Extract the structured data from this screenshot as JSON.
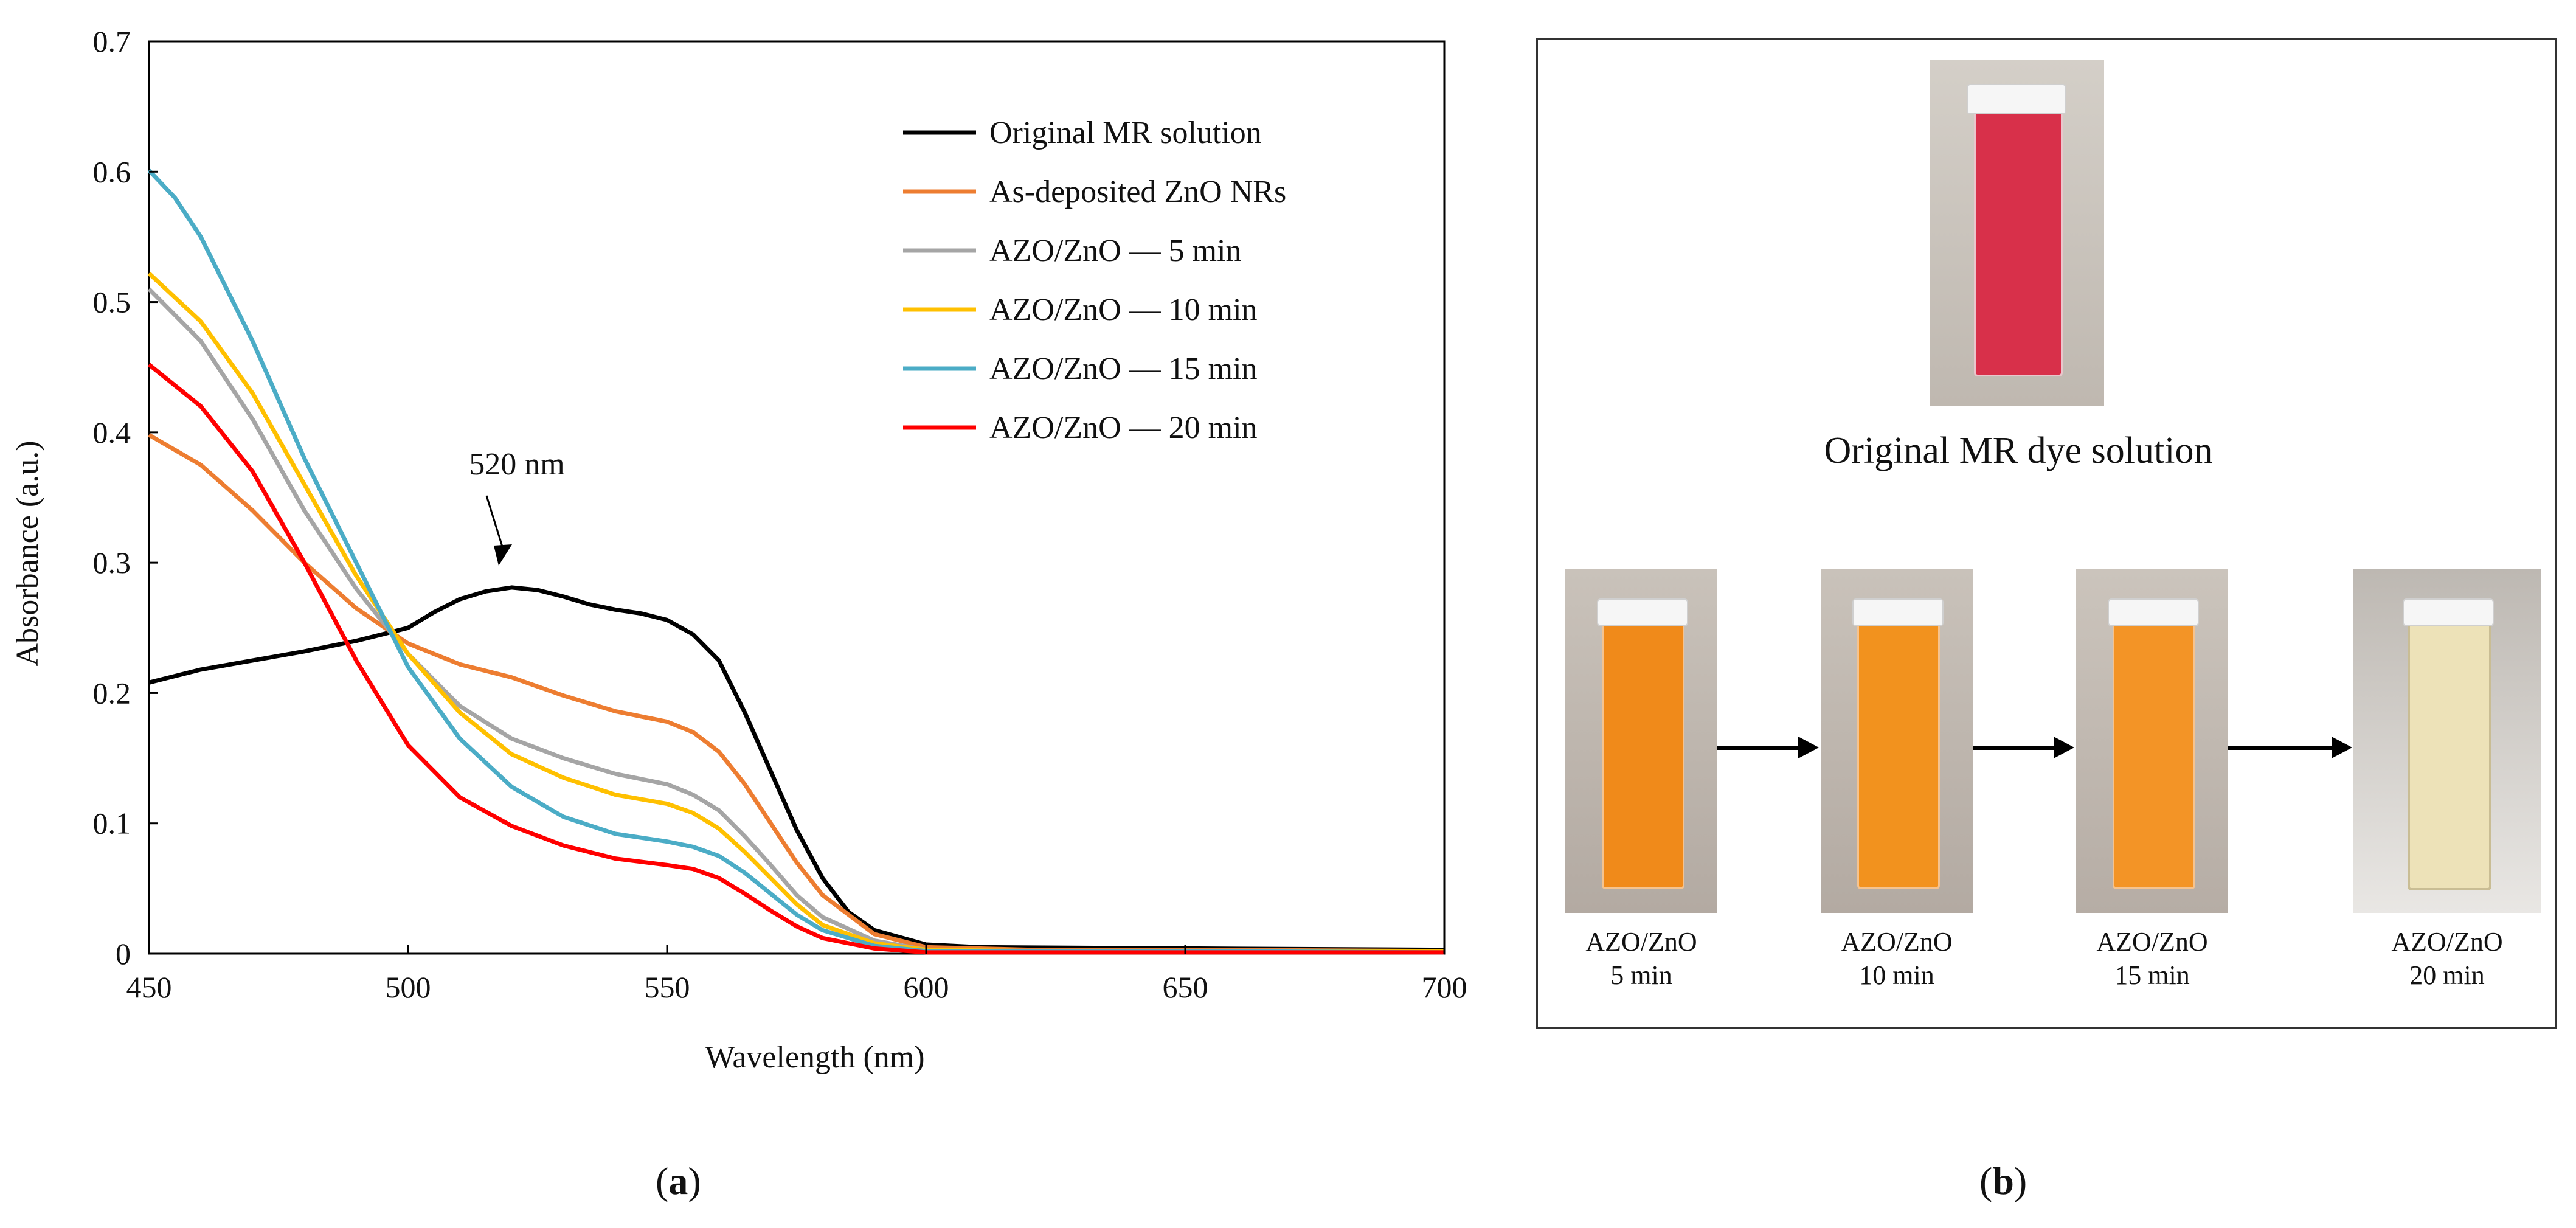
{
  "chart_data": {
    "type": "line",
    "panel_label": "a",
    "xlabel": "Wavelength (nm)",
    "ylabel": "Absorbance (a.u.)",
    "xlim": [
      450,
      700
    ],
    "ylim": [
      0,
      0.7
    ],
    "x_ticks": [
      "450",
      "500",
      "550",
      "600",
      "650",
      "700"
    ],
    "y_ticks": [
      "0",
      "0.1",
      "0.2",
      "0.3",
      "0.4",
      "0.5",
      "0.6",
      "0.7"
    ],
    "annotation": {
      "text": "520 nm",
      "x": 520,
      "y": 0.28
    },
    "series": [
      {
        "name": "Original MR solution",
        "color": "#000000",
        "x": [
          450,
          460,
          470,
          480,
          490,
          500,
          505,
          510,
          515,
          520,
          525,
          530,
          535,
          540,
          545,
          550,
          555,
          560,
          565,
          570,
          575,
          580,
          585,
          590,
          600,
          610,
          650,
          700
        ],
        "y": [
          0.208,
          0.218,
          0.225,
          0.232,
          0.24,
          0.25,
          0.262,
          0.272,
          0.278,
          0.281,
          0.279,
          0.274,
          0.268,
          0.264,
          0.261,
          0.256,
          0.245,
          0.225,
          0.185,
          0.14,
          0.095,
          0.058,
          0.032,
          0.018,
          0.007,
          0.005,
          0.004,
          0.003
        ]
      },
      {
        "name": "As-deposited ZnO NRs",
        "color": "#ED7D31",
        "x": [
          450,
          460,
          470,
          480,
          490,
          500,
          510,
          520,
          530,
          540,
          550,
          555,
          560,
          565,
          570,
          575,
          580,
          590,
          600,
          620,
          650,
          700
        ],
        "y": [
          0.398,
          0.375,
          0.34,
          0.3,
          0.265,
          0.238,
          0.222,
          0.212,
          0.198,
          0.186,
          0.178,
          0.17,
          0.155,
          0.13,
          0.1,
          0.07,
          0.045,
          0.015,
          0.005,
          0.003,
          0.003,
          0.002
        ]
      },
      {
        "name": "AZO/ZnO — 5 min",
        "color": "#A5A5A5",
        "x": [
          450,
          460,
          470,
          480,
          490,
          500,
          510,
          520,
          530,
          540,
          550,
          555,
          560,
          565,
          570,
          575,
          580,
          590,
          600,
          620,
          650,
          700
        ],
        "y": [
          0.51,
          0.47,
          0.41,
          0.34,
          0.28,
          0.23,
          0.19,
          0.165,
          0.15,
          0.138,
          0.13,
          0.122,
          0.11,
          0.09,
          0.068,
          0.045,
          0.028,
          0.01,
          0.003,
          0.002,
          0.002,
          0.002
        ]
      },
      {
        "name": "AZO/ZnO — 10 min",
        "color": "#FFC000",
        "x": [
          450,
          460,
          470,
          480,
          490,
          500,
          510,
          520,
          530,
          540,
          550,
          555,
          560,
          565,
          570,
          575,
          580,
          590,
          600,
          620,
          650,
          700
        ],
        "y": [
          0.522,
          0.485,
          0.43,
          0.36,
          0.29,
          0.23,
          0.185,
          0.153,
          0.135,
          0.122,
          0.115,
          0.108,
          0.096,
          0.078,
          0.058,
          0.038,
          0.022,
          0.008,
          0.003,
          0.002,
          0.002,
          0.002
        ]
      },
      {
        "name": "AZO/ZnO — 15 min",
        "color": "#4BACC6",
        "x": [
          450,
          455,
          460,
          470,
          480,
          490,
          500,
          510,
          520,
          530,
          540,
          550,
          555,
          560,
          565,
          570,
          575,
          580,
          590,
          600,
          620,
          650,
          700
        ],
        "y": [
          0.601,
          0.58,
          0.55,
          0.47,
          0.38,
          0.3,
          0.22,
          0.165,
          0.128,
          0.105,
          0.092,
          0.086,
          0.082,
          0.075,
          0.062,
          0.046,
          0.03,
          0.018,
          0.006,
          0.002,
          0.002,
          0.002,
          0.001
        ]
      },
      {
        "name": "AZO/ZnO — 20 min",
        "color": "#FF0000",
        "x": [
          450,
          460,
          470,
          480,
          490,
          500,
          510,
          520,
          530,
          540,
          550,
          555,
          560,
          565,
          570,
          575,
          580,
          590,
          600,
          620,
          650,
          700
        ],
        "y": [
          0.452,
          0.42,
          0.37,
          0.3,
          0.225,
          0.16,
          0.12,
          0.098,
          0.083,
          0.073,
          0.068,
          0.065,
          0.058,
          0.046,
          0.033,
          0.021,
          0.012,
          0.004,
          0.001,
          0.001,
          0.001,
          0.001
        ]
      }
    ]
  },
  "photo_panel": {
    "panel_label": "b",
    "original_caption": "Original MR dye solution",
    "samples": [
      {
        "line1": "AZO/ZnO",
        "line2": "5 min",
        "liquid_color": "#F08A1A"
      },
      {
        "line1": "AZO/ZnO",
        "line2": "10 min",
        "liquid_color": "#F2921E"
      },
      {
        "line1": "AZO/ZnO",
        "line2": "15 min",
        "liquid_color": "#F39426"
      },
      {
        "line1": "AZO/ZnO",
        "line2": "20 min",
        "liquid_color": "#EDE2B8"
      }
    ],
    "original_liquid_color": "#D8304A"
  }
}
